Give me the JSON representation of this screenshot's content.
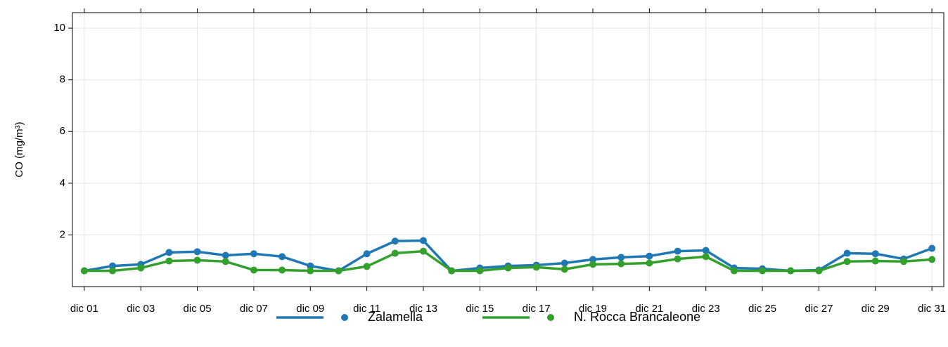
{
  "chart_data": {
    "type": "line",
    "y_label": "CO (mg/m³)",
    "categories": [
      "dic 01",
      null,
      "dic 03",
      null,
      "dic 05",
      null,
      "dic 07",
      null,
      "dic 09",
      null,
      "dic 11",
      null,
      "dic 13",
      null,
      "dic 15",
      null,
      "dic 17",
      null,
      "dic 19",
      null,
      "dic 21",
      null,
      "dic 23",
      null,
      "dic 25",
      null,
      "dic 27",
      null,
      "dic 29",
      null,
      "dic 31"
    ],
    "series": [
      {
        "name": "Zalamella",
        "color": "#1f78b4",
        "values": [
          0.61,
          0.8,
          0.86,
          1.32,
          1.35,
          1.21,
          1.27,
          1.16,
          0.8,
          0.61,
          1.27,
          1.76,
          1.78,
          0.61,
          0.72,
          0.8,
          0.83,
          0.91,
          1.05,
          1.13,
          1.18,
          1.37,
          1.4,
          0.72,
          0.69,
          0.61,
          0.64,
          1.29,
          1.27,
          1.07,
          1.48
        ]
      },
      {
        "name": "N. Rocca Brancaleone",
        "color": "#33a02c",
        "values": [
          0.61,
          0.61,
          0.72,
          0.99,
          1.02,
          0.97,
          0.64,
          0.64,
          0.61,
          0.61,
          0.78,
          1.29,
          1.37,
          0.61,
          0.61,
          0.72,
          0.75,
          0.67,
          0.86,
          0.88,
          0.91,
          1.07,
          1.16,
          0.61,
          0.61,
          0.61,
          0.61,
          0.97,
          0.99,
          0.97,
          1.05
        ]
      }
    ],
    "ylim": [
      0,
      10.6
    ],
    "yticks": [
      2,
      4,
      6,
      8,
      10
    ],
    "grid": true
  }
}
